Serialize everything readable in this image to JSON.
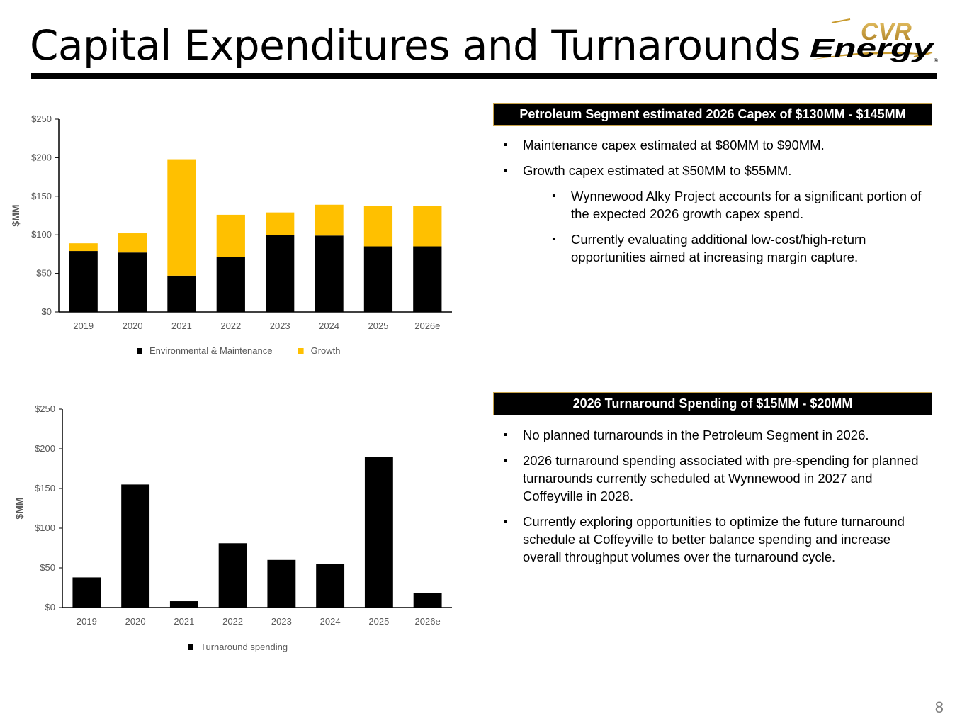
{
  "title": "Capital Expenditures and Turnarounds",
  "logo": {
    "line1": "CVR",
    "line2": "Energy",
    "mark": "®",
    "colors": {
      "gold": "#c89a2e",
      "black": "#000000"
    }
  },
  "page_number": "8",
  "colors": {
    "black": "#000000",
    "gold": "#ffc000",
    "axis_text": "#595959",
    "header_border": "#c8a34a"
  },
  "capex_box": {
    "header": "Petroleum Segment estimated 2026 Capex of $130MM - $145MM",
    "bullets": [
      "Maintenance capex estimated at $80MM to $90MM.",
      "Growth capex estimated at $50MM to $55MM.",
      "Wynnewood Alky Project accounts for a significant portion of the expected 2026 growth capex spend.",
      "Currently evaluating additional low-cost/high-return opportunities aimed at increasing margin capture."
    ]
  },
  "turnaround_box": {
    "header": "2026 Turnaround Spending of $15MM - $20MM",
    "bullets": [
      "No planned turnarounds in the Petroleum Segment in 2026.",
      "2026 turnaround spending associated with pre-spending for planned turnarounds currently scheduled at Wynnewood in 2027 and Coffeyville in 2028.",
      "Currently exploring opportunities to optimize the future turnaround schedule at Coffeyville to better balance spending and increase overall throughput volumes over the turnaround cycle."
    ]
  },
  "chart_data": [
    {
      "type": "bar",
      "stacked": true,
      "categories": [
        "2019",
        "2020",
        "2021",
        "2022",
        "2023",
        "2024",
        "2025",
        "2026e"
      ],
      "series": [
        {
          "name": "Environmental & Maintenance",
          "color": "#000000",
          "values": [
            79,
            77,
            47,
            71,
            100,
            99,
            85,
            85
          ]
        },
        {
          "name": "Growth",
          "color": "#ffc000",
          "values": [
            10,
            25,
            151,
            55,
            29,
            40,
            52,
            52
          ]
        }
      ],
      "ylabel": "$MM",
      "ylim": [
        0,
        250
      ],
      "yticks": [
        0,
        50,
        100,
        150,
        200,
        250
      ],
      "ytick_labels": [
        "$0",
        "$50",
        "$100",
        "$150",
        "$200",
        "$250"
      ],
      "grid": false,
      "legend": "bottom"
    },
    {
      "type": "bar",
      "categories": [
        "2019",
        "2020",
        "2021",
        "2022",
        "2023",
        "2024",
        "2025",
        "2026e"
      ],
      "series": [
        {
          "name": "Turnaround spending",
          "color": "#000000",
          "values": [
            38,
            155,
            8,
            81,
            60,
            55,
            190,
            18
          ]
        }
      ],
      "ylabel": "$MM",
      "ylim": [
        0,
        250
      ],
      "yticks": [
        0,
        50,
        100,
        150,
        200,
        250
      ],
      "ytick_labels": [
        "$0",
        "$50",
        "$100",
        "$150",
        "$200",
        "$250"
      ],
      "grid": false,
      "legend": "bottom"
    }
  ]
}
